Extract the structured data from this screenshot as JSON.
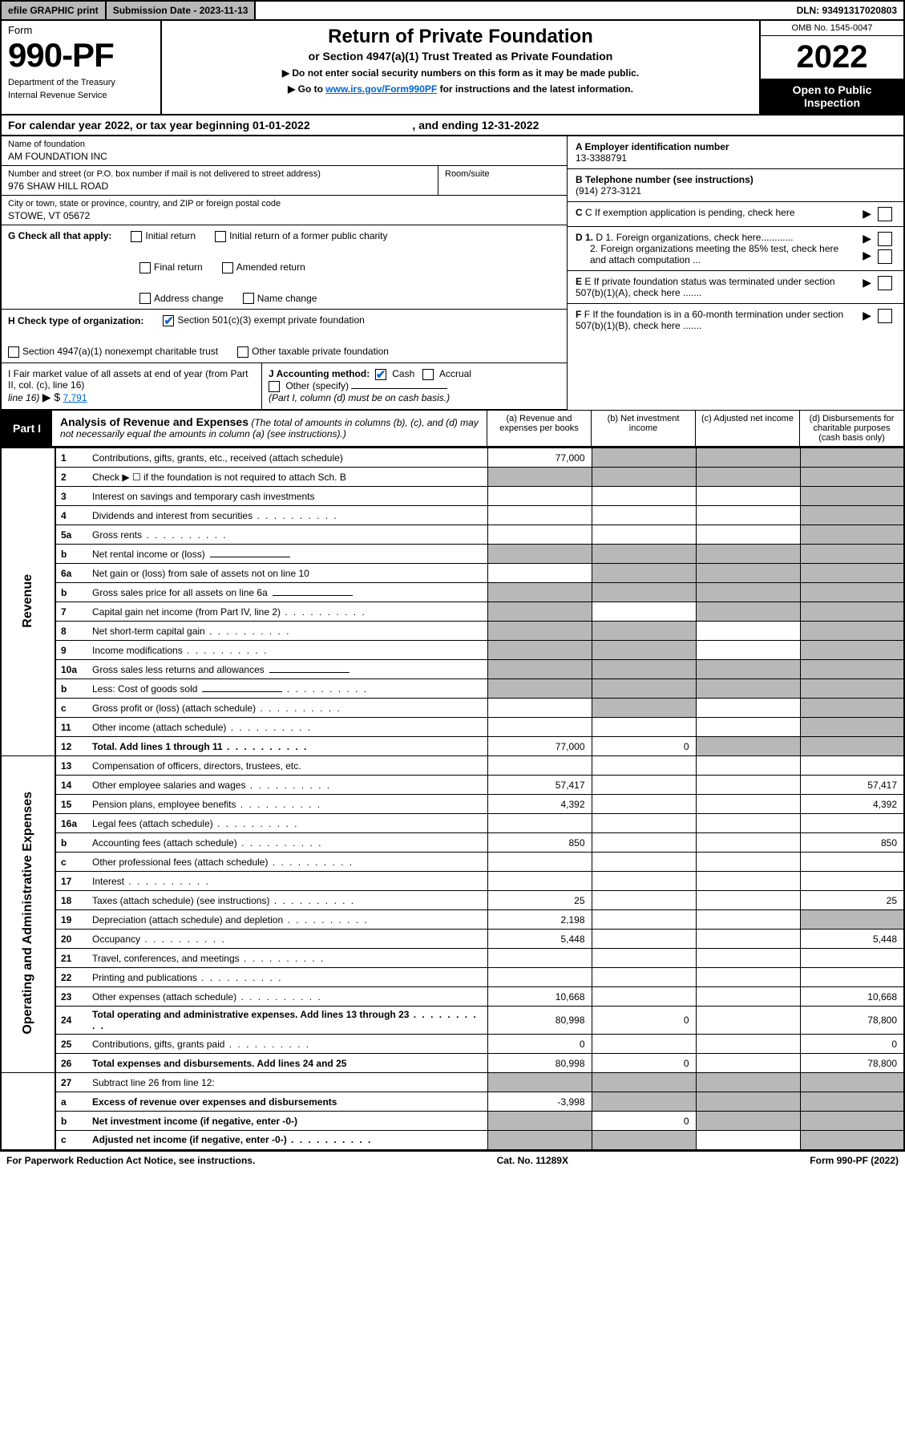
{
  "topbar": {
    "efile": "efile GRAPHIC print",
    "submission_label": "Submission Date - 2023-11-13",
    "dln_label": "DLN: 93491317020803"
  },
  "header": {
    "form_word": "Form",
    "form_number": "990-PF",
    "dept": "Department of the Treasury",
    "irs": "Internal Revenue Service",
    "title": "Return of Private Foundation",
    "subtitle": "or Section 4947(a)(1) Trust Treated as Private Foundation",
    "instr1": "▶ Do not enter social security numbers on this form as it may be made public.",
    "instr2_pre": "▶ Go to ",
    "instr2_link": "www.irs.gov/Form990PF",
    "instr2_post": " for instructions and the latest information.",
    "omb": "OMB No. 1545-0047",
    "year": "2022",
    "open_public": "Open to Public Inspection"
  },
  "cal_year": {
    "text_a": "For calendar year 2022, or tax year beginning 01-01-2022",
    "text_b": ", and ending 12-31-2022"
  },
  "info": {
    "name_label": "Name of foundation",
    "name": "AM FOUNDATION INC",
    "addr_label": "Number and street (or P.O. box number if mail is not delivered to street address)",
    "addr": "976 SHAW HILL ROAD",
    "room_label": "Room/suite",
    "city_label": "City or town, state or province, country, and ZIP or foreign postal code",
    "city": "STOWE, VT  05672",
    "a_label": "A Employer identification number",
    "a_val": "13-3388791",
    "b_label": "B Telephone number (see instructions)",
    "b_val": "(914) 273-3121",
    "c_label": "C If exemption application is pending, check here",
    "d1_label": "D 1. Foreign organizations, check here............",
    "d2_label": "2. Foreign organizations meeting the 85% test, check here and attach computation ...",
    "e_label": "E  If private foundation status was terminated under section 507(b)(1)(A), check here .......",
    "f_label": "F  If the foundation is in a 60-month termination under section 507(b)(1)(B), check here .......",
    "g_label": "G Check all that apply:",
    "g_opts": {
      "initial": "Initial return",
      "initial_former": "Initial return of a former public charity",
      "final": "Final return",
      "amended": "Amended return",
      "addr_change": "Address change",
      "name_change": "Name change"
    },
    "h_label": "H Check type of organization:",
    "h_opts": {
      "s501c3": "Section 501(c)(3) exempt private foundation",
      "s4947": "Section 4947(a)(1) nonexempt charitable trust",
      "other_tax": "Other taxable private foundation"
    },
    "i_label": "I Fair market value of all assets at end of year (from Part II, col. (c), line 16)",
    "i_prefix": "▶ $",
    "i_val": "7,791",
    "j_label": "J Accounting method:",
    "j_cash": "Cash",
    "j_accrual": "Accrual",
    "j_other": "Other (specify)",
    "j_note": "(Part I, column (d) must be on cash basis.)"
  },
  "part1": {
    "label": "Part I",
    "title": "Analysis of Revenue and Expenses",
    "title_note": "(The total of amounts in columns (b), (c), and (d) may not necessarily equal the amounts in column (a) (see instructions).)",
    "col_a": "(a)   Revenue and expenses per books",
    "col_b": "(b)   Net investment income",
    "col_c": "(c)   Adjusted net income",
    "col_d": "(d)  Disbursements for charitable purposes (cash basis only)"
  },
  "side_labels": {
    "revenue": "Revenue",
    "expenses": "Operating and Administrative Expenses"
  },
  "rows": [
    {
      "n": "1",
      "d": "Contributions, gifts, grants, etc., received (attach schedule)",
      "a": "77,000",
      "bgrey": true,
      "cgrey": true,
      "dgrey": true
    },
    {
      "n": "2",
      "d": "Check ▶ ☐ if the foundation is not required to attach Sch. B",
      "agrey": true,
      "bgrey": true,
      "cgrey": true,
      "dgrey": true,
      "dotsfill": true
    },
    {
      "n": "3",
      "d": "Interest on savings and temporary cash investments",
      "dgrey": true
    },
    {
      "n": "4",
      "d": "Dividends and interest from securities",
      "dgrey": true,
      "dots": true
    },
    {
      "n": "5a",
      "d": "Gross rents",
      "dgrey": true,
      "dots": true
    },
    {
      "n": "b",
      "d": "Net rental income or (loss)",
      "agrey": true,
      "bgrey": true,
      "cgrey": true,
      "dgrey": true,
      "inline": true
    },
    {
      "n": "6a",
      "d": "Net gain or (loss) from sale of assets not on line 10",
      "bgrey": true,
      "cgrey": true,
      "dgrey": true
    },
    {
      "n": "b",
      "d": "Gross sales price for all assets on line 6a",
      "agrey": true,
      "bgrey": true,
      "cgrey": true,
      "dgrey": true,
      "inline": true
    },
    {
      "n": "7",
      "d": "Capital gain net income (from Part IV, line 2)",
      "agrey": true,
      "cgrey": true,
      "dgrey": true,
      "dots": true
    },
    {
      "n": "8",
      "d": "Net short-term capital gain",
      "agrey": true,
      "bgrey": true,
      "dgrey": true,
      "dots": true
    },
    {
      "n": "9",
      "d": "Income modifications",
      "agrey": true,
      "bgrey": true,
      "dgrey": true,
      "dots": true
    },
    {
      "n": "10a",
      "d": "Gross sales less returns and allowances",
      "agrey": true,
      "bgrey": true,
      "cgrey": true,
      "dgrey": true,
      "inline": true
    },
    {
      "n": "b",
      "d": "Less: Cost of goods sold",
      "agrey": true,
      "bgrey": true,
      "cgrey": true,
      "dgrey": true,
      "inline": true,
      "dots": true
    },
    {
      "n": "c",
      "d": "Gross profit or (loss) (attach schedule)",
      "bgrey": true,
      "dgrey": true,
      "dots": true
    },
    {
      "n": "11",
      "d": "Other income (attach schedule)",
      "dgrey": true,
      "dots": true
    },
    {
      "n": "12",
      "d": "Total. Add lines 1 through 11",
      "a": "77,000",
      "b": "0",
      "cgrey": true,
      "dgrey": true,
      "bold": true,
      "dots": true
    }
  ],
  "exp_rows": [
    {
      "n": "13",
      "d": "Compensation of officers, directors, trustees, etc."
    },
    {
      "n": "14",
      "d": "Other employee salaries and wages",
      "a": "57,417",
      "dd": "57,417",
      "dots": true
    },
    {
      "n": "15",
      "d": "Pension plans, employee benefits",
      "a": "4,392",
      "dd": "4,392",
      "dots": true
    },
    {
      "n": "16a",
      "d": "Legal fees (attach schedule)",
      "dots": true
    },
    {
      "n": "b",
      "d": "Accounting fees (attach schedule)",
      "a": "850",
      "dd": "850",
      "dots": true
    },
    {
      "n": "c",
      "d": "Other professional fees (attach schedule)",
      "dots": true
    },
    {
      "n": "17",
      "d": "Interest",
      "dots": true
    },
    {
      "n": "18",
      "d": "Taxes (attach schedule) (see instructions)",
      "a": "25",
      "dd": "25",
      "dots": true
    },
    {
      "n": "19",
      "d": "Depreciation (attach schedule) and depletion",
      "a": "2,198",
      "dgrey": true,
      "dots": true
    },
    {
      "n": "20",
      "d": "Occupancy",
      "a": "5,448",
      "dd": "5,448",
      "dots": true
    },
    {
      "n": "21",
      "d": "Travel, conferences, and meetings",
      "dots": true
    },
    {
      "n": "22",
      "d": "Printing and publications",
      "dots": true
    },
    {
      "n": "23",
      "d": "Other expenses (attach schedule)",
      "a": "10,668",
      "dd": "10,668",
      "dots": true
    },
    {
      "n": "24",
      "d": "Total operating and administrative expenses. Add lines 13 through 23",
      "a": "80,998",
      "b": "0",
      "dd": "78,800",
      "bold": true,
      "dots": true
    },
    {
      "n": "25",
      "d": "Contributions, gifts, grants paid",
      "a": "0",
      "dd": "0",
      "dots": true
    },
    {
      "n": "26",
      "d": "Total expenses and disbursements. Add lines 24 and 25",
      "a": "80,998",
      "b": "0",
      "dd": "78,800",
      "bold": true
    }
  ],
  "final_rows": [
    {
      "n": "27",
      "d": "Subtract line 26 from line 12:",
      "agrey": true,
      "bgrey": true,
      "cgrey": true,
      "dgrey": true
    },
    {
      "n": "a",
      "d": "Excess of revenue over expenses and disbursements",
      "a": "-3,998",
      "bgrey": true,
      "cgrey": true,
      "dgrey": true,
      "bold": true
    },
    {
      "n": "b",
      "d": "Net investment income (if negative, enter -0-)",
      "agrey": true,
      "b": "0",
      "cgrey": true,
      "dgrey": true,
      "bold": true
    },
    {
      "n": "c",
      "d": "Adjusted net income (if negative, enter -0-)",
      "agrey": true,
      "bgrey": true,
      "dgrey": true,
      "bold": true,
      "dots": true
    }
  ],
  "footer": {
    "left": "For Paperwork Reduction Act Notice, see instructions.",
    "mid": "Cat. No. 11289X",
    "right": "Form 990-PF (2022)"
  },
  "colors": {
    "grey": "#b8b8b8",
    "link": "#0066cc",
    "check": "#1565c0"
  }
}
